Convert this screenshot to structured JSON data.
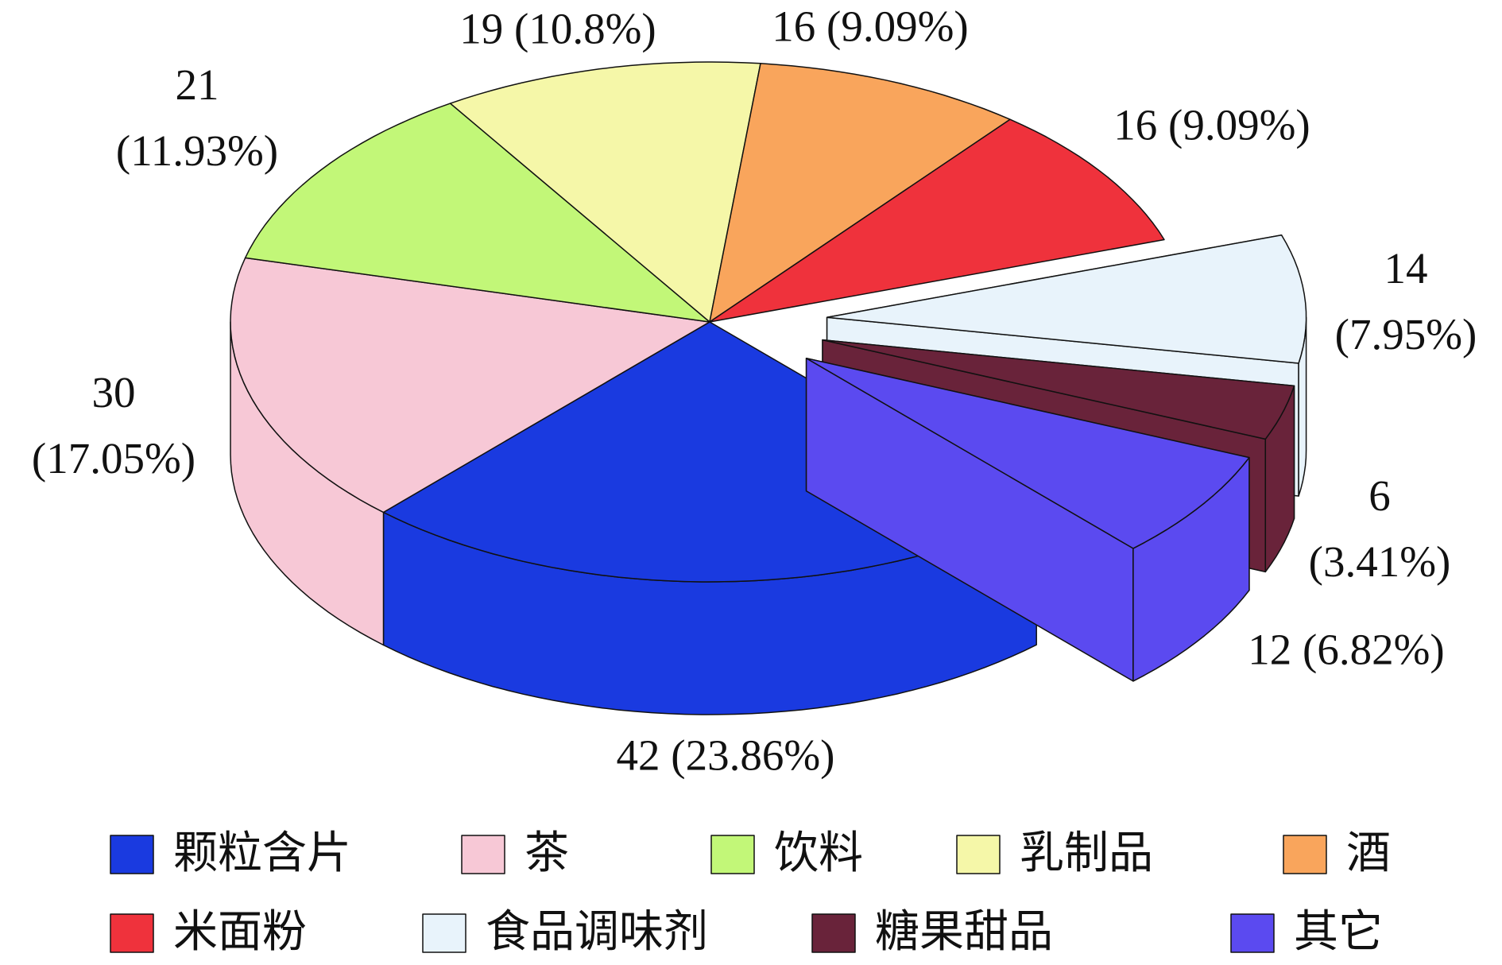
{
  "chart_data": {
    "type": "pie3d",
    "categories": [
      "颗粒含片",
      "茶",
      "饮料",
      "乳制品",
      "酒",
      "米面粉",
      "食品调味剂",
      "糖果甜品",
      "其它"
    ],
    "values": [
      42,
      30,
      21,
      19,
      16,
      16,
      14,
      6,
      12
    ],
    "value_labels": [
      "42 (23.86%)",
      "30 (17.05%)",
      "21 (11.93%)",
      "19 (10.8%)",
      "16 (9.09%)",
      "16 (9.09%)",
      "14 (7.95%)",
      "6 (3.41%)",
      "12 (6.82%)"
    ],
    "colors": [
      "#1a3ae0",
      "#f7c8d6",
      "#c2f778",
      "#f5f7a8",
      "#f9a55c",
      "#ef323c",
      "#e8f3fb",
      "#69233a",
      "#5b4af0"
    ],
    "exploded": [
      false,
      false,
      false,
      false,
      false,
      false,
      true,
      true,
      true
    ]
  }
}
